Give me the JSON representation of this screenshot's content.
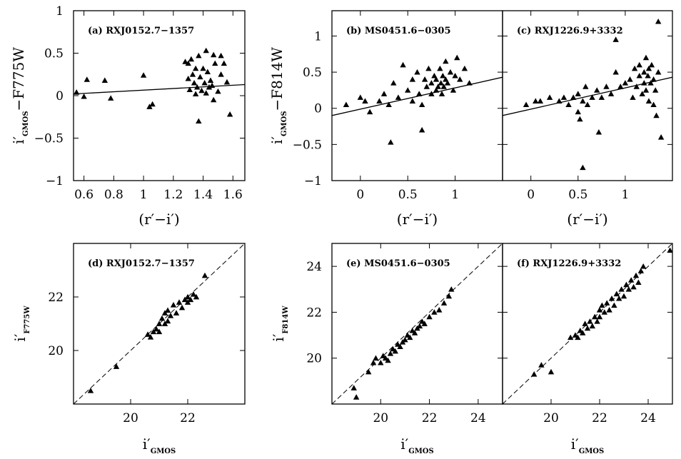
{
  "chart_data": [
    {
      "id": "a",
      "type": "scatter",
      "label": "(a) RXJ0152.7−1357",
      "xlim": [
        0.53,
        1.68
      ],
      "ylim": [
        -1,
        1
      ],
      "xticks": [
        0.6,
        0.8,
        1,
        1.2,
        1.4,
        1.6
      ],
      "xtick_labels": [
        "0.6",
        "0.8",
        "1",
        "1.2",
        "1.4",
        "1.6"
      ],
      "yticks": [
        -1,
        -0.5,
        0,
        0.5,
        1
      ],
      "ytick_labels": [
        "−1",
        "−0.5",
        "0",
        "0.5",
        "1"
      ],
      "xlabel": "(r′−i′)",
      "ylabel": {
        "main": "i′",
        "sub": "GMOS",
        "rest": "−F775W"
      },
      "line": {
        "kind": "fit",
        "x": [
          0.53,
          1.68
        ],
        "y": [
          0.02,
          0.13
        ]
      },
      "points": [
        [
          0.55,
          0.04
        ],
        [
          0.6,
          -0.01
        ],
        [
          0.62,
          0.19
        ],
        [
          0.74,
          0.18
        ],
        [
          0.78,
          -0.03
        ],
        [
          1.0,
          0.24
        ],
        [
          1.04,
          -0.13
        ],
        [
          1.06,
          -0.1
        ],
        [
          1.28,
          0.4
        ],
        [
          1.3,
          0.38
        ],
        [
          1.3,
          0.2
        ],
        [
          1.31,
          0.07
        ],
        [
          1.32,
          0.43
        ],
        [
          1.33,
          0.25
        ],
        [
          1.34,
          0.15
        ],
        [
          1.35,
          0.02
        ],
        [
          1.35,
          0.32
        ],
        [
          1.36,
          0.1
        ],
        [
          1.37,
          0.47
        ],
        [
          1.37,
          -0.3
        ],
        [
          1.38,
          0.22
        ],
        [
          1.39,
          0.06
        ],
        [
          1.4,
          0.32
        ],
        [
          1.41,
          0.15
        ],
        [
          1.42,
          0.53
        ],
        [
          1.42,
          0.03
        ],
        [
          1.43,
          0.28
        ],
        [
          1.44,
          0.1
        ],
        [
          1.45,
          0.18
        ],
        [
          1.46,
          0.12
        ],
        [
          1.47,
          -0.05
        ],
        [
          1.47,
          0.48
        ],
        [
          1.48,
          0.38
        ],
        [
          1.5,
          0.05
        ],
        [
          1.52,
          0.25
        ],
        [
          1.52,
          0.47
        ],
        [
          1.54,
          0.38
        ],
        [
          1.56,
          0.16
        ],
        [
          1.58,
          -0.22
        ]
      ]
    },
    {
      "id": "b",
      "type": "scatter",
      "label": "(b) MS0451.6−0305",
      "xlim": [
        -0.3,
        1.5
      ],
      "ylim": [
        -1,
        1.35
      ],
      "xticks": [
        0,
        0.5,
        1
      ],
      "xtick_labels": [
        "0",
        "0.5",
        "1"
      ],
      "yticks": [
        -1,
        -0.5,
        0,
        0.5,
        1
      ],
      "ytick_labels": [
        "−1",
        "−0.5",
        "0",
        "0.5",
        "1"
      ],
      "xlabel": "(r′−i′)",
      "ylabel": {
        "main": "i′",
        "sub": "GMOS",
        "rest": "−F814W"
      },
      "line": {
        "kind": "fit",
        "x": [
          -0.3,
          1.5
        ],
        "y": [
          -0.1,
          0.43
        ]
      },
      "points": [
        [
          -0.15,
          0.05
        ],
        [
          0.0,
          0.15
        ],
        [
          0.05,
          0.1
        ],
        [
          0.1,
          -0.05
        ],
        [
          0.2,
          0.1
        ],
        [
          0.25,
          0.2
        ],
        [
          0.3,
          0.05
        ],
        [
          0.32,
          -0.47
        ],
        [
          0.35,
          0.35
        ],
        [
          0.4,
          0.15
        ],
        [
          0.45,
          0.6
        ],
        [
          0.5,
          0.25
        ],
        [
          0.55,
          0.4
        ],
        [
          0.55,
          0.1
        ],
        [
          0.6,
          0.5
        ],
        [
          0.62,
          0.2
        ],
        [
          0.65,
          -0.3
        ],
        [
          0.65,
          0.05
        ],
        [
          0.68,
          0.4
        ],
        [
          0.7,
          0.3
        ],
        [
          0.72,
          0.55
        ],
        [
          0.75,
          0.2
        ],
        [
          0.75,
          0.35
        ],
        [
          0.78,
          0.45
        ],
        [
          0.8,
          0.25
        ],
        [
          0.8,
          0.4
        ],
        [
          0.82,
          0.3
        ],
        [
          0.84,
          0.55
        ],
        [
          0.85,
          0.35
        ],
        [
          0.86,
          0.2
        ],
        [
          0.87,
          0.45
        ],
        [
          0.88,
          0.3
        ],
        [
          0.9,
          0.4
        ],
        [
          0.9,
          0.65
        ],
        [
          0.92,
          0.35
        ],
        [
          0.95,
          0.5
        ],
        [
          0.98,
          0.25
        ],
        [
          1.0,
          0.45
        ],
        [
          1.02,
          0.7
        ],
        [
          1.05,
          0.4
        ],
        [
          1.1,
          0.55
        ],
        [
          1.15,
          0.35
        ]
      ]
    },
    {
      "id": "c",
      "type": "scatter",
      "label": "(c) RXJ1226.9+3332",
      "xlim": [
        -0.3,
        1.5
      ],
      "ylim": [
        -1,
        1.35
      ],
      "xticks": [
        0,
        0.5,
        1
      ],
      "xtick_labels": [
        "0",
        "0.5",
        "1"
      ],
      "yticks": [
        -1,
        -0.5,
        0,
        0.5,
        1
      ],
      "ytick_labels": [],
      "xlabel": "(r′−i′)",
      "line": {
        "kind": "fit",
        "x": [
          -0.3,
          1.5
        ],
        "y": [
          -0.1,
          0.43
        ]
      },
      "points": [
        [
          -0.05,
          0.05
        ],
        [
          0.05,
          0.1
        ],
        [
          0.1,
          0.1
        ],
        [
          0.2,
          0.15
        ],
        [
          0.3,
          0.1
        ],
        [
          0.35,
          0.15
        ],
        [
          0.4,
          0.05
        ],
        [
          0.45,
          0.15
        ],
        [
          0.5,
          0.2
        ],
        [
          0.5,
          -0.05
        ],
        [
          0.52,
          -0.15
        ],
        [
          0.55,
          0.1
        ],
        [
          0.55,
          -0.82
        ],
        [
          0.58,
          0.3
        ],
        [
          0.6,
          0.05
        ],
        [
          0.65,
          0.15
        ],
        [
          0.7,
          0.25
        ],
        [
          0.72,
          -0.33
        ],
        [
          0.75,
          0.15
        ],
        [
          0.8,
          0.3
        ],
        [
          0.85,
          0.2
        ],
        [
          0.9,
          0.95
        ],
        [
          0.9,
          0.5
        ],
        [
          0.95,
          0.3
        ],
        [
          1.0,
          0.35
        ],
        [
          1.05,
          0.4
        ],
        [
          1.08,
          0.15
        ],
        [
          1.1,
          0.55
        ],
        [
          1.12,
          0.3
        ],
        [
          1.15,
          0.6
        ],
        [
          1.15,
          0.45
        ],
        [
          1.18,
          0.2
        ],
        [
          1.2,
          0.5
        ],
        [
          1.2,
          0.35
        ],
        [
          1.22,
          0.7
        ],
        [
          1.22,
          0.25
        ],
        [
          1.24,
          0.45
        ],
        [
          1.25,
          0.55
        ],
        [
          1.25,
          0.1
        ],
        [
          1.27,
          0.35
        ],
        [
          1.28,
          0.6
        ],
        [
          1.3,
          0.05
        ],
        [
          1.3,
          0.4
        ],
        [
          1.32,
          0.25
        ],
        [
          1.33,
          -0.1
        ],
        [
          1.35,
          1.2
        ],
        [
          1.35,
          0.5
        ],
        [
          1.38,
          -0.4
        ]
      ]
    },
    {
      "id": "d",
      "type": "scatter",
      "label": "(d) RXJ0152.7−1357",
      "xlim": [
        18,
        24
      ],
      "ylim": [
        18,
        24
      ],
      "xticks": [
        20,
        22
      ],
      "xtick_labels": [
        "20",
        "22"
      ],
      "yticks": [
        20,
        22
      ],
      "ytick_labels": [
        "20",
        "22"
      ],
      "xlabel": {
        "main": "i′",
        "sub": "GMOS"
      },
      "ylabel": {
        "main": "i′",
        "sub": "F775W"
      },
      "line": {
        "kind": "one-to-one",
        "x": [
          18,
          24
        ],
        "y": [
          18,
          24
        ]
      },
      "points": [
        [
          18.6,
          18.5
        ],
        [
          19.5,
          19.4
        ],
        [
          20.6,
          20.6
        ],
        [
          20.7,
          20.5
        ],
        [
          20.8,
          20.7
        ],
        [
          20.9,
          20.8
        ],
        [
          21.0,
          21.0
        ],
        [
          21.0,
          20.7
        ],
        [
          21.1,
          21.2
        ],
        [
          21.2,
          21.0
        ],
        [
          21.2,
          21.4
        ],
        [
          21.3,
          21.1
        ],
        [
          21.3,
          21.5
        ],
        [
          21.4,
          21.3
        ],
        [
          21.5,
          21.7
        ],
        [
          21.6,
          21.4
        ],
        [
          21.7,
          21.8
        ],
        [
          21.8,
          21.6
        ],
        [
          21.9,
          21.9
        ],
        [
          22.0,
          21.8
        ],
        [
          22.0,
          22.0
        ],
        [
          22.1,
          21.9
        ],
        [
          22.2,
          22.1
        ],
        [
          22.3,
          22.0
        ],
        [
          22.6,
          22.8
        ]
      ]
    },
    {
      "id": "e",
      "type": "scatter",
      "label": "(e) MS0451.6−0305",
      "xlim": [
        18,
        25
      ],
      "ylim": [
        18,
        25
      ],
      "xticks": [
        20,
        22,
        24
      ],
      "xtick_labels": [
        "20",
        "22",
        "24"
      ],
      "yticks": [
        20,
        22,
        24
      ],
      "ytick_labels": [
        "20",
        "22",
        "24"
      ],
      "xlabel": {
        "main": "i′",
        "sub": "GMOS"
      },
      "ylabel": {
        "main": "i′",
        "sub": "F814W"
      },
      "line": {
        "kind": "one-to-one",
        "x": [
          18,
          25
        ],
        "y": [
          18,
          25
        ]
      },
      "points": [
        [
          18.9,
          18.7
        ],
        [
          19.0,
          18.3
        ],
        [
          19.5,
          19.4
        ],
        [
          19.7,
          19.8
        ],
        [
          19.8,
          20.0
        ],
        [
          20.0,
          19.8
        ],
        [
          20.1,
          20.1
        ],
        [
          20.2,
          20.0
        ],
        [
          20.3,
          19.9
        ],
        [
          20.4,
          20.2
        ],
        [
          20.5,
          20.4
        ],
        [
          20.6,
          20.3
        ],
        [
          20.7,
          20.6
        ],
        [
          20.8,
          20.5
        ],
        [
          20.9,
          20.7
        ],
        [
          21.0,
          20.8
        ],
        [
          21.1,
          21.0
        ],
        [
          21.2,
          20.9
        ],
        [
          21.3,
          21.2
        ],
        [
          21.4,
          21.1
        ],
        [
          21.5,
          21.3
        ],
        [
          21.6,
          21.4
        ],
        [
          21.7,
          21.6
        ],
        [
          21.8,
          21.5
        ],
        [
          22.0,
          21.8
        ],
        [
          22.2,
          22.0
        ],
        [
          22.4,
          22.1
        ],
        [
          22.6,
          22.4
        ],
        [
          22.8,
          22.7
        ],
        [
          22.9,
          23.0
        ]
      ]
    },
    {
      "id": "f",
      "type": "scatter",
      "label": "(f) RXJ1226.9+3332",
      "xlim": [
        18,
        25
      ],
      "ylim": [
        18,
        25
      ],
      "xticks": [
        20,
        22,
        24
      ],
      "xtick_labels": [
        "20",
        "22",
        "24"
      ],
      "yticks": [
        20,
        22,
        24
      ],
      "ytick_labels": [],
      "xlabel": {
        "main": "i′",
        "sub": "GMOS"
      },
      "line": {
        "kind": "one-to-one",
        "x": [
          18,
          25
        ],
        "y": [
          18,
          25
        ]
      },
      "points": [
        [
          19.3,
          19.3
        ],
        [
          19.6,
          19.7
        ],
        [
          20.0,
          19.4
        ],
        [
          20.8,
          20.9
        ],
        [
          21.0,
          21.0
        ],
        [
          21.1,
          20.9
        ],
        [
          21.2,
          21.2
        ],
        [
          21.3,
          21.1
        ],
        [
          21.4,
          21.5
        ],
        [
          21.5,
          21.3
        ],
        [
          21.6,
          21.6
        ],
        [
          21.7,
          21.4
        ],
        [
          21.8,
          21.8
        ],
        [
          21.9,
          21.6
        ],
        [
          22.0,
          22.1
        ],
        [
          22.0,
          21.8
        ],
        [
          22.1,
          22.3
        ],
        [
          22.2,
          22.0
        ],
        [
          22.3,
          22.4
        ],
        [
          22.4,
          22.1
        ],
        [
          22.5,
          22.6
        ],
        [
          22.6,
          22.3
        ],
        [
          22.7,
          22.8
        ],
        [
          22.8,
          22.6
        ],
        [
          22.9,
          23.0
        ],
        [
          23.0,
          22.7
        ],
        [
          23.1,
          23.2
        ],
        [
          23.2,
          23.0
        ],
        [
          23.3,
          23.4
        ],
        [
          23.4,
          23.1
        ],
        [
          23.5,
          23.6
        ],
        [
          23.6,
          23.3
        ],
        [
          23.7,
          23.8
        ],
        [
          23.8,
          24.0
        ],
        [
          24.9,
          24.7
        ]
      ]
    }
  ]
}
